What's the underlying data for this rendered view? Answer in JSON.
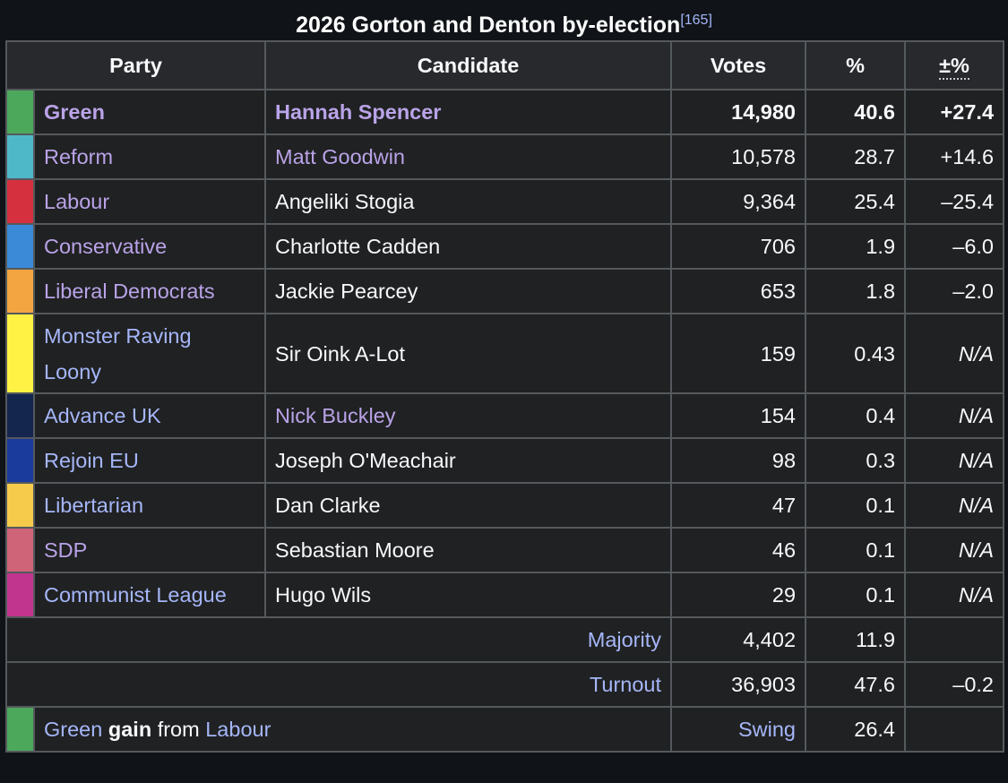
{
  "caption": {
    "title": "2026 Gorton and Denton by-election",
    "ref": "[165]"
  },
  "headers": {
    "party": "Party",
    "candidate": "Candidate",
    "votes": "Votes",
    "pct": "%",
    "change": "±%"
  },
  "rows": [
    {
      "color": "#4ca95b",
      "party": "Green",
      "candidate": "Hannah Spencer",
      "votes": "14,980",
      "pct": "40.6",
      "change": "+27.4"
    },
    {
      "color": "#4fb8c8",
      "party": "Reform",
      "candidate": "Matt Goodwin",
      "votes": "10,578",
      "pct": "28.7",
      "change": "+14.6"
    },
    {
      "color": "#d5303e",
      "party": "Labour",
      "candidate": "Angeliki Stogia",
      "votes": "9,364",
      "pct": "25.4",
      "change": "–25.4"
    },
    {
      "color": "#3a8ad8",
      "party": "Conservative",
      "candidate": "Charlotte Cadden",
      "votes": "706",
      "pct": "1.9",
      "change": "–6.0"
    },
    {
      "color": "#f2a541",
      "party": "Liberal Democrats",
      "candidate": "Jackie Pearcey",
      "votes": "653",
      "pct": "1.8",
      "change": "–2.0"
    },
    {
      "color": "#fff244",
      "party_line1": "Monster Raving",
      "party_line2": "Loony",
      "candidate": "Sir Oink A-Lot",
      "votes": "159",
      "pct": "0.43",
      "change": "N/A"
    },
    {
      "color": "#14254e",
      "party": "Advance UK",
      "candidate": "Nick Buckley",
      "votes": "154",
      "pct": "0.4",
      "change": "N/A"
    },
    {
      "color": "#1a3a9c",
      "party": "Rejoin EU",
      "candidate": "Joseph O'Meachair",
      "votes": "98",
      "pct": "0.3",
      "change": "N/A"
    },
    {
      "color": "#f6cb4b",
      "party": "Libertarian",
      "candidate": "Dan Clarke",
      "votes": "47",
      "pct": "0.1",
      "change": "N/A"
    },
    {
      "color": "#cf6478",
      "party": "SDP",
      "candidate": "Sebastian Moore",
      "votes": "46",
      "pct": "0.1",
      "change": "N/A"
    },
    {
      "color": "#c2358f",
      "party": "Communist League",
      "candidate": "Hugo Wils",
      "votes": "29",
      "pct": "0.1",
      "change": "N/A"
    }
  ],
  "majority": {
    "label": "Majority",
    "votes": "4,402",
    "pct": "11.9",
    "change": ""
  },
  "turnout": {
    "label": "Turnout",
    "votes": "36,903",
    "pct": "47.6",
    "change": "–0.2"
  },
  "result": {
    "color": "#4ca95b",
    "winner": "Green",
    "gain_word": "gain",
    "from_word": "from",
    "loser": "Labour",
    "swing_label": "Swing",
    "swing_value": "26.4"
  }
}
